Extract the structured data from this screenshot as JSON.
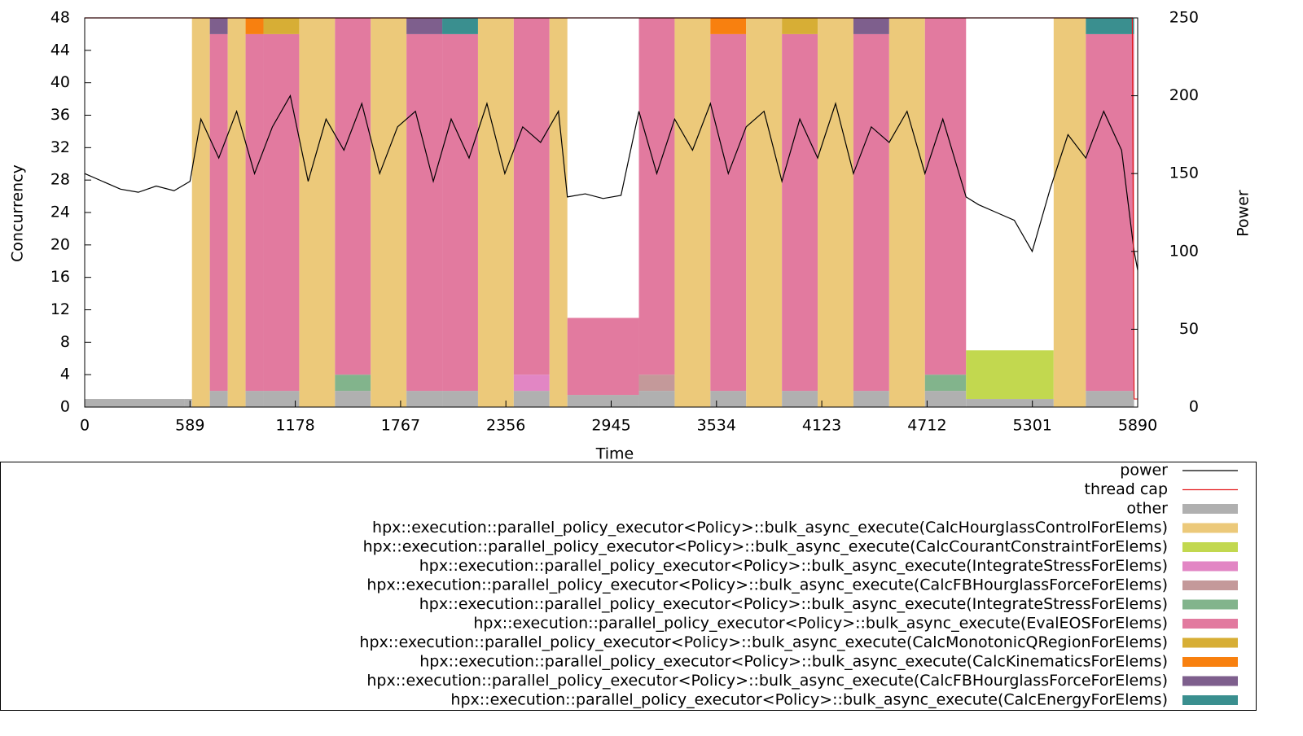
{
  "chart_data": {
    "type": "area",
    "xlabel": "Time",
    "ylabel": "Concurrency",
    "y2label": "Power",
    "xlim": [
      0,
      5890
    ],
    "xticks": [
      0,
      589,
      1178,
      1767,
      2356,
      2945,
      3534,
      4123,
      4712,
      5301,
      5890
    ],
    "ylim": [
      0,
      48
    ],
    "yticks": [
      0,
      4,
      8,
      12,
      16,
      20,
      24,
      28,
      32,
      36,
      40,
      44,
      48
    ],
    "y2lim": [
      0,
      250
    ],
    "y2ticks": [
      0,
      50,
      100,
      150,
      200,
      250
    ],
    "x": [
      0,
      560,
      600,
      700,
      800,
      900,
      1000,
      1200,
      1400,
      1600,
      1800,
      2000,
      2200,
      2400,
      2600,
      2700,
      3100,
      3300,
      3500,
      3700,
      3900,
      4100,
      4300,
      4500,
      4700,
      4930,
      5420,
      5600,
      5870
    ],
    "series": [
      {
        "name": "power",
        "type": "line",
        "axis": "y2",
        "color": "#000000",
        "x": [
          0,
          100,
          200,
          300,
          400,
          500,
          589,
          650,
          750,
          850,
          950,
          1050,
          1150,
          1250,
          1350,
          1450,
          1550,
          1650,
          1750,
          1850,
          1950,
          2050,
          2150,
          2250,
          2350,
          2450,
          2550,
          2650,
          2700,
          2800,
          2900,
          3000,
          3100,
          3200,
          3300,
          3400,
          3500,
          3600,
          3700,
          3800,
          3900,
          4000,
          4100,
          4200,
          4300,
          4400,
          4500,
          4600,
          4700,
          4800,
          4930,
          5000,
          5100,
          5200,
          5300,
          5400,
          5500,
          5600,
          5700,
          5800,
          5870,
          5890
        ],
        "values": [
          150,
          145,
          140,
          138,
          142,
          139,
          145,
          185,
          160,
          190,
          150,
          180,
          200,
          145,
          185,
          165,
          195,
          150,
          180,
          190,
          145,
          185,
          160,
          195,
          150,
          180,
          170,
          190,
          135,
          137,
          134,
          136,
          190,
          150,
          185,
          165,
          195,
          150,
          180,
          190,
          145,
          185,
          160,
          195,
          150,
          180,
          170,
          190,
          150,
          185,
          135,
          130,
          125,
          120,
          100,
          140,
          175,
          160,
          190,
          165,
          100,
          88
        ]
      },
      {
        "name": "thread cap",
        "type": "line",
        "color": "#e41a1c",
        "x": [
          0,
          5860,
          5870,
          5890
        ],
        "values": [
          48,
          48,
          1,
          1
        ]
      },
      {
        "name": "other",
        "color": "#b0b0b0",
        "values": [
          1,
          1,
          0,
          2,
          0,
          2,
          2,
          0,
          2,
          0,
          2,
          2,
          0,
          2,
          0,
          1.5,
          2,
          0,
          2,
          0,
          2,
          0,
          2,
          0,
          2,
          1,
          0,
          2,
          0
        ]
      },
      {
        "name": "hpx::execution::parallel_policy_executor<Policy>::bulk_async_execute(CalcHourglassControlForElems)",
        "color": "#ecc97a",
        "values": [
          0,
          0,
          48,
          0,
          48,
          0,
          0,
          48,
          0,
          48,
          0,
          0,
          48,
          0,
          48,
          0,
          0,
          48,
          0,
          48,
          0,
          48,
          0,
          48,
          0,
          0,
          48,
          0,
          0
        ]
      },
      {
        "name": "hpx::execution::parallel_policy_executor<Policy>::bulk_async_execute(CalcCourantConstraintForElems)",
        "color": "#c2d84f",
        "values": [
          0,
          0,
          0,
          0,
          0,
          0,
          0,
          0,
          0,
          0,
          0,
          0,
          0,
          0,
          0,
          0,
          0,
          0,
          0,
          0,
          0,
          0,
          0,
          0,
          0,
          6,
          0,
          0,
          0
        ]
      },
      {
        "name": "hpx::execution::parallel_policy_executor<Policy>::bulk_async_execute(IntegrateStressForElems)",
        "color": "#e286c4",
        "values": [
          0,
          0,
          0,
          0,
          0,
          0,
          0,
          0,
          0,
          0,
          0,
          0,
          0,
          2,
          0,
          0,
          0,
          0,
          0,
          0,
          0,
          0,
          0,
          0,
          0,
          0,
          0,
          0,
          0
        ]
      },
      {
        "name": "hpx::execution::parallel_policy_executor<Policy>::bulk_async_execute(CalcFBHourglassForceForElems)",
        "color": "#c4999a",
        "values": [
          0,
          0,
          0,
          0,
          0,
          0,
          0,
          0,
          0,
          0,
          0,
          0,
          0,
          0,
          0,
          0,
          2,
          0,
          0,
          0,
          0,
          0,
          0,
          0,
          0,
          0,
          0,
          0,
          0
        ]
      },
      {
        "name": "hpx::execution::parallel_policy_executor<Policy>::bulk_async_execute(IntegrateStressForElems)",
        "color": "#82b48c",
        "values": [
          0,
          0,
          0,
          0,
          0,
          0,
          0,
          0,
          2,
          0,
          0,
          0,
          0,
          0,
          0,
          0,
          0,
          0,
          0,
          0,
          0,
          0,
          0,
          0,
          2,
          0,
          0,
          0,
          0
        ]
      },
      {
        "name": "hpx::execution::parallel_policy_executor<Policy>::bulk_async_execute(EvalEOSForElems)",
        "color": "#e27a9f",
        "values": [
          0,
          0,
          0,
          44,
          0,
          44,
          44,
          0,
          44,
          0,
          44,
          44,
          0,
          44,
          0,
          9.5,
          44,
          0,
          44,
          0,
          44,
          0,
          44,
          0,
          44,
          0,
          0,
          44,
          0
        ]
      },
      {
        "name": "hpx::execution::parallel_policy_executor<Policy>::bulk_async_execute(CalcMonotonicQRegionForElems)",
        "color": "#d7ae35",
        "values": [
          0,
          0,
          0,
          0,
          0,
          0,
          2,
          0,
          0,
          0,
          0,
          0,
          0,
          0,
          0,
          0,
          0,
          0,
          0,
          0,
          2,
          0,
          0,
          0,
          0,
          0,
          0,
          0,
          0
        ]
      },
      {
        "name": "hpx::execution::parallel_policy_executor<Policy>::bulk_async_execute(CalcKinematicsForElems)",
        "color": "#f8800f",
        "values": [
          0,
          0,
          0,
          0,
          0,
          2,
          0,
          0,
          0,
          0,
          0,
          0,
          0,
          0,
          0,
          0,
          0,
          0,
          2,
          0,
          0,
          0,
          0,
          0,
          0,
          0,
          0,
          0,
          0
        ]
      },
      {
        "name": "hpx::execution::parallel_policy_executor<Policy>::bulk_async_execute(CalcFBHourglassForceForElems)",
        "color": "#7e5f8d",
        "values": [
          0,
          0,
          0,
          2,
          0,
          0,
          0,
          0,
          0,
          0,
          2,
          0,
          0,
          0,
          0,
          0,
          0,
          0,
          0,
          0,
          0,
          0,
          2,
          0,
          0,
          0,
          0,
          0,
          0
        ]
      },
      {
        "name": "hpx::execution::parallel_policy_executor<Policy>::bulk_async_execute(CalcEnergyForElems)",
        "color": "#3a8f8f",
        "values": [
          0,
          0,
          0,
          0,
          0,
          0,
          0,
          0,
          0,
          0,
          0,
          2,
          0,
          0,
          0,
          0,
          0,
          0,
          0,
          0,
          0,
          0,
          0,
          0,
          0,
          0,
          0,
          2,
          0
        ]
      }
    ]
  }
}
